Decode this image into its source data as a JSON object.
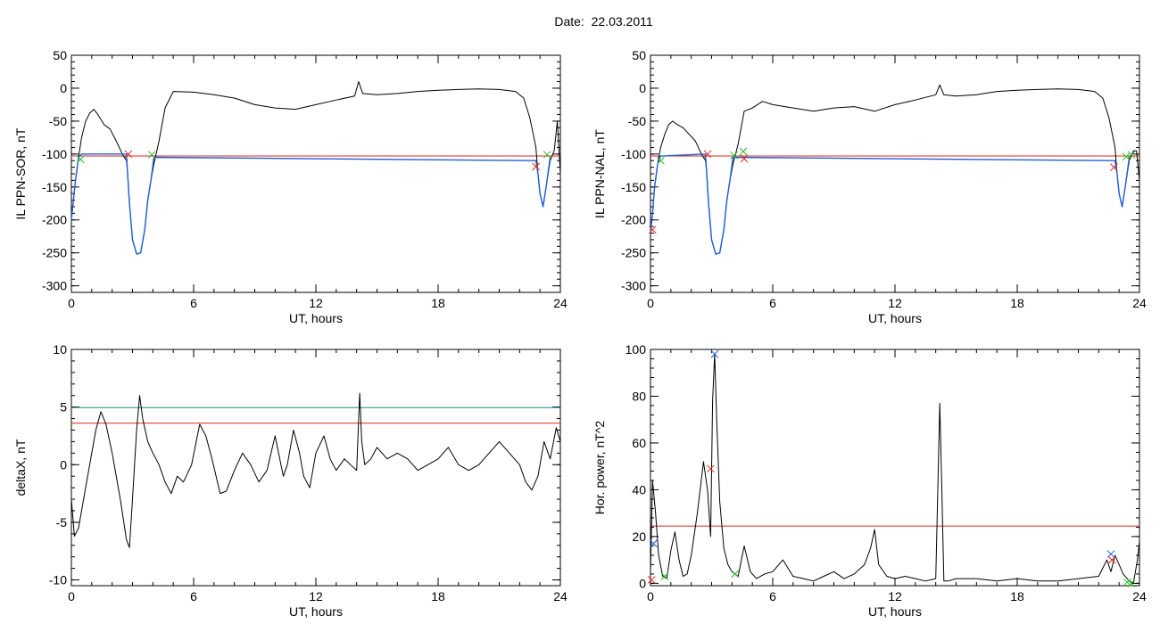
{
  "page": {
    "date_label": "Date:",
    "date_value": "22.03.2011"
  },
  "chart_data": [
    {
      "type": "line",
      "xlabel": "UT, hours",
      "ylabel": "IL PPN-SOR, nT",
      "xlim": [
        0,
        24
      ],
      "ylim": [
        -310,
        50
      ],
      "xticks": [
        0,
        6,
        12,
        18,
        24
      ],
      "yticks": [
        -300,
        -250,
        -200,
        -150,
        -100,
        -50,
        0,
        50
      ],
      "series": [
        {
          "color": "#000000",
          "x": [
            0,
            0.1,
            0.2,
            0.35,
            0.5,
            0.7,
            0.9,
            1.1,
            1.3,
            1.6,
            1.9,
            2.2,
            2.5,
            2.7,
            2.75,
            2.85,
            3.0,
            3.2,
            3.4,
            3.6,
            3.75,
            3.9,
            4.05,
            4.3,
            4.6,
            5.0,
            6.0,
            7.0,
            8.0,
            9.0,
            10.0,
            11.0,
            12.0,
            13.0,
            13.9,
            14.1,
            14.3,
            15.0,
            16.0,
            17.0,
            18.0,
            19.0,
            20.0,
            21.0,
            21.8,
            22.2,
            22.5,
            22.8,
            22.9,
            23.0,
            23.15,
            23.3,
            23.5,
            23.7,
            23.85,
            24.0
          ],
          "y": [
            -200,
            -170,
            -140,
            -105,
            -75,
            -50,
            -38,
            -32,
            -40,
            -55,
            -62,
            -80,
            -100,
            -110,
            -125,
            -175,
            -230,
            -252,
            -250,
            -215,
            -170,
            -140,
            -115,
            -80,
            -30,
            -5,
            -6,
            -10,
            -15,
            -25,
            -30,
            -32,
            -25,
            -18,
            -12,
            10,
            -8,
            -10,
            -8,
            -5,
            -3,
            -2,
            -1,
            -2,
            -5,
            -15,
            -45,
            -90,
            -130,
            -160,
            -180,
            -150,
            -110,
            -95,
            -50,
            -130
          ]
        },
        {
          "color": "#1f5fd6",
          "x": [
            0,
            0.1,
            0.2,
            0.35,
            0.5,
            2.7,
            2.75,
            2.85,
            3.0,
            3.2,
            3.4,
            3.6,
            3.75,
            3.9,
            4.05,
            22.8,
            22.9,
            23.0,
            23.15,
            23.3,
            23.5
          ],
          "y": [
            -200,
            -170,
            -140,
            -105,
            -100,
            -100,
            -125,
            -175,
            -230,
            -252,
            -250,
            -215,
            -170,
            -140,
            -105,
            -110,
            -130,
            -160,
            -180,
            -150,
            -105
          ]
        }
      ],
      "reference_lines": [
        {
          "y": -103,
          "color": "#e0261b"
        }
      ],
      "markers": [
        {
          "x": 0.45,
          "y": -108,
          "color": "#2db82d"
        },
        {
          "x": 2.8,
          "y": -100,
          "color": "#e0261b"
        },
        {
          "x": 3.95,
          "y": -101,
          "color": "#2db82d"
        },
        {
          "x": 22.8,
          "y": -119,
          "color": "#e0261b"
        },
        {
          "x": 23.35,
          "y": -101,
          "color": "#2db82d"
        }
      ]
    },
    {
      "type": "line",
      "xlabel": "UT, hours",
      "ylabel": "IL PPN-NAL, nT",
      "xlim": [
        0,
        24
      ],
      "ylim": [
        -310,
        50
      ],
      "xticks": [
        0,
        6,
        12,
        18,
        24
      ],
      "yticks": [
        -300,
        -250,
        -200,
        -150,
        -100,
        -50,
        0,
        50
      ],
      "series": [
        {
          "color": "#000000",
          "x": [
            0,
            0.1,
            0.2,
            0.35,
            0.5,
            0.7,
            0.9,
            1.1,
            1.3,
            1.6,
            1.9,
            2.2,
            2.5,
            2.7,
            2.75,
            2.85,
            3.0,
            3.2,
            3.4,
            3.6,
            3.75,
            3.9,
            4.05,
            4.3,
            4.6,
            5.0,
            5.5,
            6.0,
            7.0,
            8.0,
            9.0,
            10.0,
            11.0,
            12.0,
            13.0,
            14.0,
            14.2,
            14.4,
            15.0,
            16.0,
            17.0,
            18.0,
            19.0,
            20.0,
            21.0,
            21.8,
            22.2,
            22.5,
            22.8,
            22.9,
            23.0,
            23.15,
            23.3,
            23.5,
            23.7,
            23.85,
            24.0
          ],
          "y": [
            -220,
            -190,
            -150,
            -115,
            -90,
            -70,
            -55,
            -50,
            -55,
            -60,
            -70,
            -80,
            -100,
            -110,
            -125,
            -175,
            -230,
            -252,
            -250,
            -215,
            -170,
            -140,
            -115,
            -85,
            -35,
            -30,
            -20,
            -25,
            -30,
            -35,
            -30,
            -28,
            -35,
            -25,
            -18,
            -10,
            5,
            -10,
            -12,
            -10,
            -5,
            -3,
            -2,
            -1,
            -2,
            -5,
            -15,
            -45,
            -90,
            -130,
            -160,
            -180,
            -150,
            -110,
            -95,
            -95,
            -140
          ]
        },
        {
          "color": "#1f5fd6",
          "x": [
            0,
            0.1,
            0.2,
            0.35,
            0.5,
            2.7,
            2.75,
            2.85,
            3.0,
            3.2,
            3.4,
            3.6,
            3.75,
            3.9,
            4.05,
            22.8,
            22.9,
            23.0,
            23.15,
            23.3,
            23.5
          ],
          "y": [
            -220,
            -190,
            -150,
            -115,
            -103,
            -100,
            -125,
            -175,
            -230,
            -252,
            -250,
            -215,
            -170,
            -140,
            -105,
            -110,
            -130,
            -160,
            -180,
            -150,
            -105
          ]
        }
      ],
      "reference_lines": [
        {
          "y": -103,
          "color": "#e0261b"
        }
      ],
      "markers": [
        {
          "x": 0.1,
          "y": -215,
          "color": "#e0261b"
        },
        {
          "x": 0.5,
          "y": -110,
          "color": "#2db82d"
        },
        {
          "x": 2.8,
          "y": -100,
          "color": "#e0261b"
        },
        {
          "x": 4.1,
          "y": -102,
          "color": "#2db82d"
        },
        {
          "x": 4.55,
          "y": -96,
          "color": "#2db82d"
        },
        {
          "x": 4.6,
          "y": -107,
          "color": "#e0261b"
        },
        {
          "x": 22.75,
          "y": -120,
          "color": "#e0261b"
        },
        {
          "x": 23.35,
          "y": -104,
          "color": "#2db82d"
        },
        {
          "x": 23.6,
          "y": -101,
          "color": "#2db82d"
        }
      ]
    },
    {
      "type": "line",
      "xlabel": "UT, hours",
      "ylabel": "deltaX, nT",
      "xlim": [
        0,
        24
      ],
      "ylim": [
        -10.5,
        10
      ],
      "xticks": [
        0,
        6,
        12,
        18,
        24
      ],
      "yticks": [
        -10,
        -5,
        0,
        5,
        10
      ],
      "series": [
        {
          "color": "#000000",
          "x": [
            0,
            0.15,
            0.35,
            0.6,
            0.9,
            1.2,
            1.45,
            1.7,
            2.0,
            2.4,
            2.7,
            2.85,
            3.0,
            3.2,
            3.35,
            3.5,
            3.75,
            4.0,
            4.3,
            4.6,
            4.9,
            5.2,
            5.5,
            5.9,
            6.3,
            6.6,
            6.9,
            7.3,
            7.6,
            8.0,
            8.4,
            8.8,
            9.2,
            9.6,
            10.0,
            10.4,
            10.6,
            10.9,
            11.2,
            11.4,
            11.7,
            12.0,
            12.4,
            12.7,
            13.0,
            13.4,
            13.7,
            14.0,
            14.15,
            14.25,
            14.4,
            14.7,
            15.0,
            15.5,
            16.0,
            16.5,
            17.0,
            17.5,
            18.0,
            18.5,
            19.0,
            19.5,
            20.0,
            20.5,
            21.0,
            21.5,
            22.0,
            22.3,
            22.6,
            22.9,
            23.2,
            23.5,
            23.8,
            24.0
          ],
          "y": [
            -3,
            -6.2,
            -5.5,
            -3,
            0,
            3,
            4.6,
            3.5,
            1,
            -3,
            -6.5,
            -7.2,
            -3,
            3,
            6,
            4,
            2,
            1,
            0,
            -1.5,
            -2.5,
            -1,
            -1.5,
            0,
            3.5,
            2.5,
            0.5,
            -2.5,
            -2.3,
            -0.5,
            1,
            0,
            -1.5,
            -0.5,
            2.5,
            -1,
            0,
            3,
            1,
            -1,
            -2,
            1,
            2.5,
            0.5,
            -0.5,
            0.5,
            0,
            -0.5,
            6.2,
            2,
            0,
            0.5,
            1.5,
            0.5,
            1,
            0.5,
            -0.5,
            0,
            0.5,
            1.5,
            0,
            -0.5,
            0,
            1,
            2,
            1,
            0,
            -1.5,
            -2.2,
            -1,
            2,
            0.5,
            3.2,
            2
          ]
        }
      ],
      "reference_lines": [
        {
          "y": 4.95,
          "color": "#1f8a8a"
        },
        {
          "y": 3.6,
          "color": "#e0261b"
        }
      ],
      "markers": []
    },
    {
      "type": "line",
      "xlabel": "UT, hours",
      "ylabel": "Hor. power, nT^2",
      "xlim": [
        0,
        24
      ],
      "ylim": [
        -1,
        100
      ],
      "xticks": [
        0,
        6,
        12,
        18,
        24
      ],
      "yticks": [
        0,
        20,
        40,
        60,
        80,
        100
      ],
      "series": [
        {
          "color": "#000000",
          "x": [
            0,
            0.1,
            0.25,
            0.4,
            0.6,
            0.8,
            1.0,
            1.2,
            1.4,
            1.6,
            1.8,
            2.0,
            2.3,
            2.6,
            2.8,
            2.95,
            3.05,
            3.15,
            3.25,
            3.4,
            3.6,
            3.8,
            4.0,
            4.3,
            4.6,
            4.9,
            5.2,
            5.6,
            6.0,
            6.5,
            7.0,
            7.5,
            8.0,
            8.5,
            9.0,
            9.5,
            10.0,
            10.5,
            10.8,
            11.0,
            11.2,
            11.6,
            12.0,
            12.5,
            13.0,
            13.5,
            14.0,
            14.2,
            14.3,
            14.4,
            14.6,
            15.0,
            16.0,
            17.0,
            18.0,
            19.0,
            20.0,
            21.0,
            22.0,
            22.4,
            22.6,
            22.8,
            23.0,
            23.2,
            23.5,
            23.7,
            23.9,
            24.0
          ],
          "y": [
            5,
            44,
            30,
            12,
            3,
            2,
            14,
            22,
            10,
            3,
            4,
            12,
            30,
            52,
            40,
            20,
            78,
            98,
            70,
            35,
            15,
            8,
            5,
            3,
            16,
            5,
            2,
            4,
            5,
            10,
            3,
            2,
            1,
            3,
            5,
            2,
            4,
            8,
            15,
            23,
            8,
            3,
            2,
            3,
            2,
            1,
            2,
            77,
            40,
            1,
            1,
            2,
            2,
            1,
            2,
            1,
            1,
            2,
            3,
            10,
            5,
            12,
            8,
            4,
            1,
            0,
            10,
            18
          ]
        }
      ],
      "reference_lines": [
        {
          "y": 24.5,
          "color": "#e0261b"
        }
      ],
      "markers": [
        {
          "x": 0.05,
          "y": 1.5,
          "color": "#e0261b"
        },
        {
          "x": 0.15,
          "y": 17,
          "color": "#1f5fd6"
        },
        {
          "x": 0.7,
          "y": 3,
          "color": "#2db82d"
        },
        {
          "x": 2.95,
          "y": 49,
          "color": "#e0261b"
        },
        {
          "x": 3.15,
          "y": 98,
          "color": "#1f5fd6"
        },
        {
          "x": 4.15,
          "y": 4,
          "color": "#2db82d"
        },
        {
          "x": 22.6,
          "y": 12.5,
          "color": "#1f5fd6"
        },
        {
          "x": 22.65,
          "y": 10,
          "color": "#e0261b"
        },
        {
          "x": 23.4,
          "y": 0.5,
          "color": "#2db82d"
        },
        {
          "x": 23.6,
          "y": 0,
          "color": "#2db82d"
        }
      ]
    }
  ]
}
